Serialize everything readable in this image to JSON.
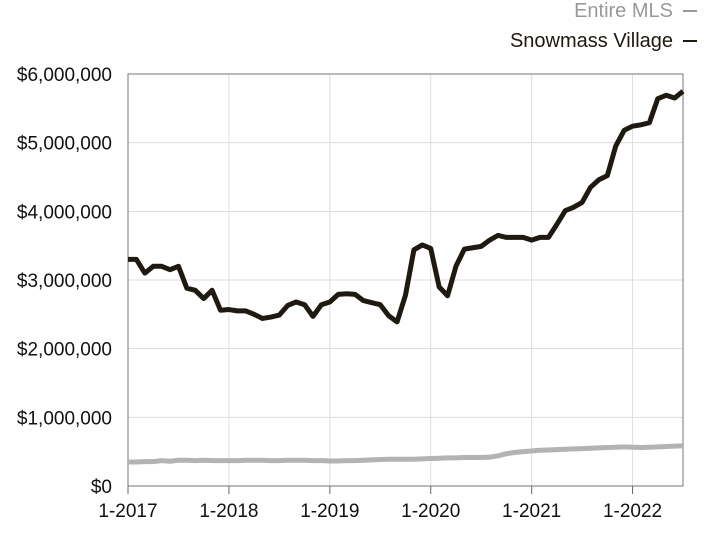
{
  "chart_data": {
    "type": "line",
    "title": "",
    "xlabel": "",
    "ylabel": "",
    "x_ticks": [
      "1-2017",
      "1-2018",
      "1-2019",
      "1-2020",
      "1-2021",
      "1-2022"
    ],
    "y_ticks": [
      "$0",
      "$1,000,000",
      "$2,000,000",
      "$3,000,000",
      "$4,000,000",
      "$5,000,000",
      "$6,000,000"
    ],
    "ylim": [
      0,
      6000000
    ],
    "xlim": [
      "2017-01",
      "2022-07"
    ],
    "grid": true,
    "legend_position": "top-right",
    "x": [
      "2017-01",
      "2017-02",
      "2017-03",
      "2017-04",
      "2017-05",
      "2017-06",
      "2017-07",
      "2017-08",
      "2017-09",
      "2017-10",
      "2017-11",
      "2017-12",
      "2018-01",
      "2018-02",
      "2018-03",
      "2018-04",
      "2018-05",
      "2018-06",
      "2018-07",
      "2018-08",
      "2018-09",
      "2018-10",
      "2018-11",
      "2018-12",
      "2019-01",
      "2019-02",
      "2019-03",
      "2019-04",
      "2019-05",
      "2019-06",
      "2019-07",
      "2019-08",
      "2019-09",
      "2019-10",
      "2019-11",
      "2019-12",
      "2020-01",
      "2020-02",
      "2020-03",
      "2020-04",
      "2020-05",
      "2020-06",
      "2020-07",
      "2020-08",
      "2020-09",
      "2020-10",
      "2020-11",
      "2020-12",
      "2021-01",
      "2021-02",
      "2021-03",
      "2021-04",
      "2021-05",
      "2021-06",
      "2021-07",
      "2021-08",
      "2021-09",
      "2021-10",
      "2021-11",
      "2021-12",
      "2022-01",
      "2022-02",
      "2022-03",
      "2022-04",
      "2022-05",
      "2022-06",
      "2022-07"
    ],
    "series": [
      {
        "name": "Entire MLS",
        "color": "#b3b3b3",
        "values": [
          350000,
          350000,
          355000,
          355000,
          370000,
          360000,
          375000,
          375000,
          370000,
          375000,
          370000,
          370000,
          370000,
          370000,
          375000,
          375000,
          375000,
          370000,
          370000,
          375000,
          375000,
          375000,
          370000,
          370000,
          365000,
          365000,
          370000,
          370000,
          375000,
          380000,
          385000,
          390000,
          390000,
          390000,
          390000,
          395000,
          400000,
          405000,
          410000,
          410000,
          415000,
          415000,
          415000,
          420000,
          440000,
          470000,
          490000,
          500000,
          510000,
          520000,
          525000,
          530000,
          535000,
          540000,
          545000,
          550000,
          555000,
          560000,
          565000,
          570000,
          565000,
          560000,
          565000,
          570000,
          575000,
          580000,
          585000
        ]
      },
      {
        "name": "Snowmass Village",
        "color": "#1e1a12",
        "values": [
          3300000,
          3300000,
          3100000,
          3200000,
          3200000,
          3150000,
          3200000,
          2880000,
          2850000,
          2730000,
          2850000,
          2560000,
          2570000,
          2550000,
          2550000,
          2500000,
          2440000,
          2460000,
          2490000,
          2630000,
          2680000,
          2640000,
          2470000,
          2640000,
          2680000,
          2790000,
          2800000,
          2790000,
          2700000,
          2670000,
          2640000,
          2480000,
          2390000,
          2780000,
          3440000,
          3510000,
          3460000,
          2900000,
          2770000,
          3200000,
          3450000,
          3470000,
          3490000,
          3580000,
          3650000,
          3620000,
          3620000,
          3620000,
          3580000,
          3620000,
          3620000,
          3810000,
          4010000,
          4060000,
          4130000,
          4350000,
          4460000,
          4520000,
          4950000,
          5180000,
          5240000,
          5260000,
          5290000,
          5640000,
          5690000,
          5650000,
          5750000
        ]
      }
    ]
  }
}
